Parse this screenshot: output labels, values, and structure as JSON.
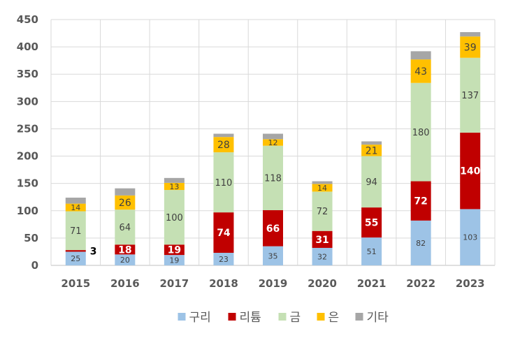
{
  "chart_data": {
    "type": "bar",
    "stacked": true,
    "categories": [
      "2015",
      "2016",
      "2017",
      "2018",
      "2019",
      "2020",
      "2021",
      "2022",
      "2023"
    ],
    "series": [
      {
        "name": "구리",
        "color": "#9DC3E6",
        "values": [
          25,
          20,
          19,
          23,
          35,
          32,
          51,
          82,
          103
        ],
        "label_color": "#404040",
        "label_bold": false,
        "label_size": "small"
      },
      {
        "name": "리튬",
        "color": "#C00000",
        "values": [
          3,
          18,
          19,
          74,
          66,
          31,
          55,
          72,
          140
        ],
        "label_color": "#ffffff",
        "label_bold": true,
        "label_size": "large"
      },
      {
        "name": "금",
        "color": "#C5E0B4",
        "values": [
          71,
          64,
          100,
          110,
          118,
          72,
          94,
          180,
          137
        ],
        "label_color": "#404040",
        "label_bold": false,
        "label_size": "medium"
      },
      {
        "name": "은",
        "color": "#FFC000",
        "values": [
          14,
          26,
          13,
          28,
          12,
          14,
          21,
          43,
          39
        ],
        "label_color": "#404040",
        "label_bold": false,
        "label_size": "mixed"
      },
      {
        "name": "기타",
        "color": "#A6A6A6",
        "values": [
          11,
          13,
          9,
          6,
          10,
          5,
          6,
          15,
          8
        ],
        "label_color": "#404040",
        "label_bold": false,
        "label_size": "none"
      }
    ],
    "ylim": [
      0,
      450
    ],
    "yticks": [
      "0",
      "50",
      "100",
      "150",
      "200",
      "250",
      "300",
      "350",
      "400",
      "450"
    ],
    "grid": true,
    "legend_position": "bottom",
    "title": "",
    "xlabel": "",
    "ylabel": ""
  }
}
